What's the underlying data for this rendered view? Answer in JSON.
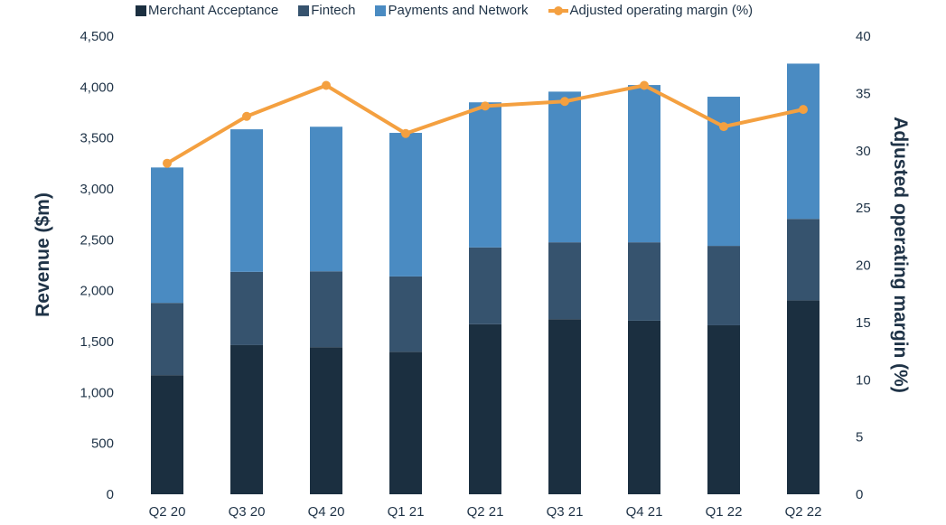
{
  "chart_data": {
    "type": "bar",
    "stacked": true,
    "categories": [
      "Q2 20",
      "Q3 20",
      "Q4 20",
      "Q1 21",
      "Q2 21",
      "Q3 21",
      "Q4 21",
      "Q1 22",
      "Q2 22"
    ],
    "series": [
      {
        "name": "Merchant Acceptance",
        "color": "#1b2f40",
        "values": [
          1170,
          1465,
          1445,
          1400,
          1670,
          1720,
          1705,
          1660,
          1905
        ]
      },
      {
        "name": "Fintech",
        "color": "#36536e",
        "values": [
          710,
          720,
          745,
          740,
          755,
          755,
          770,
          780,
          800
        ]
      },
      {
        "name": "Payments and Network",
        "color": "#4a8bc2",
        "values": [
          1330,
          1400,
          1420,
          1410,
          1425,
          1480,
          1545,
          1465,
          1525
        ]
      }
    ],
    "line_series": {
      "name": "Adjusted operating margin (%)",
      "color": "#f4a040",
      "axis": "right",
      "values": [
        28.9,
        33.0,
        35.7,
        31.5,
        33.9,
        34.3,
        35.7,
        32.1,
        33.6
      ]
    },
    "ylabel": "Revenue ($m)",
    "y2label": "Adjusted operating margin (%)",
    "ylim": [
      0,
      4500
    ],
    "y2lim": [
      0,
      40
    ],
    "yticks": [
      "0",
      "500",
      "1,000",
      "1,500",
      "2,000",
      "2,500",
      "3,000",
      "3,500",
      "4,000",
      "4,500"
    ],
    "y2ticks": [
      "0",
      "5",
      "10",
      "15",
      "20",
      "25",
      "30",
      "35",
      "40"
    ],
    "legend_position": "top",
    "grid": false
  }
}
